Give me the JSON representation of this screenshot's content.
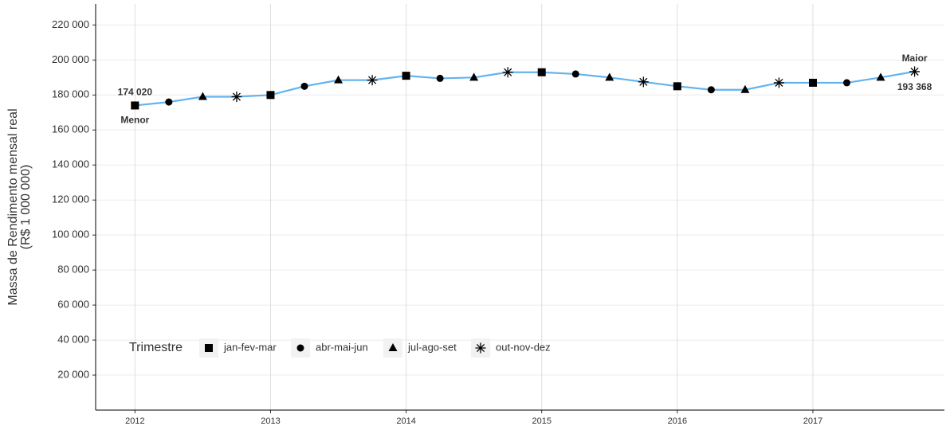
{
  "chart_data": {
    "type": "line",
    "y_label": [
      "Massa de Rendimento mensal real",
      "(R$ 1 000 000)"
    ],
    "x": [
      2012,
      2012.25,
      2012.5,
      2012.75,
      2013,
      2013.25,
      2013.5,
      2013.75,
      2014,
      2014.25,
      2014.5,
      2014.75,
      2015,
      2015.25,
      2015.5,
      2015.75,
      2016,
      2016.25,
      2016.5,
      2016.75,
      2017,
      2017.25,
      2017.5,
      2017.75
    ],
    "values": [
      174020,
      176000,
      179000,
      179000,
      180000,
      185000,
      188500,
      188500,
      191000,
      189500,
      190000,
      193000,
      193000,
      192000,
      190000,
      187500,
      185000,
      183000,
      183000,
      187000,
      187000,
      187000,
      190000,
      193368
    ],
    "value_labels": [
      "174 020",
      null,
      null,
      null,
      null,
      null,
      null,
      null,
      null,
      null,
      null,
      null,
      null,
      null,
      null,
      null,
      null,
      null,
      null,
      null,
      null,
      null,
      null,
      "193 368"
    ],
    "annotations": [
      "Menor",
      "Maior"
    ],
    "color": "#63b3ee",
    "xlim": [
      2011.71,
      2017.97
    ],
    "xticks": [
      2012,
      2013,
      2014,
      2015,
      2016,
      2017
    ],
    "ylim": [
      0,
      232000
    ],
    "yticks": [
      {
        "value": 20000,
        "label": "20 000"
      },
      {
        "value": 40000,
        "label": "40 000"
      },
      {
        "value": 60000,
        "label": "60 000"
      },
      {
        "value": 80000,
        "label": "80 000"
      },
      {
        "value": 100000,
        "label": "100 000"
      },
      {
        "value": 120000,
        "label": "120 000"
      },
      {
        "value": 140000,
        "label": "140 000"
      },
      {
        "value": 160000,
        "label": "160 000"
      },
      {
        "value": 180000,
        "label": "180 000"
      },
      {
        "value": 200000,
        "label": "200 000"
      },
      {
        "value": 220000,
        "label": "220 000"
      }
    ],
    "grid": true,
    "legend": {
      "title": "Trimestre",
      "entries": [
        "jan-fev-mar",
        "abr-mai-jun",
        "jul-ago-set",
        "out-nov-dez"
      ],
      "shapes": [
        "square",
        "circle",
        "triangle",
        "asterisk"
      ]
    }
  }
}
